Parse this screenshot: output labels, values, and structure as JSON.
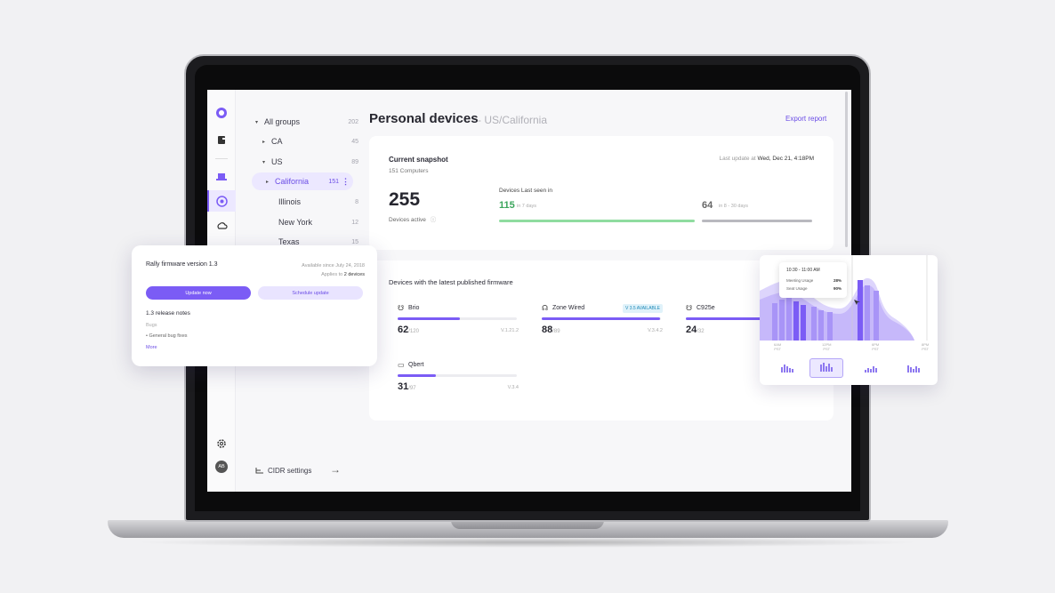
{
  "sidebar_rail": {
    "icons": [
      "logo-icon",
      "document-icon",
      "laptop-icon",
      "dashboard-icon",
      "cloud-icon",
      "settings-icon"
    ],
    "avatar": "AB"
  },
  "tree": {
    "items": [
      {
        "label": "All groups",
        "count": "202",
        "caret": "▾"
      },
      {
        "label": "CA",
        "count": "45",
        "caret": "▸"
      },
      {
        "label": "US",
        "count": "89",
        "caret": "▾"
      },
      {
        "label": "California",
        "count": "151",
        "caret": "▸"
      },
      {
        "label": "Illinois",
        "count": "8",
        "caret": ""
      },
      {
        "label": "New York",
        "count": "12",
        "caret": ""
      },
      {
        "label": "Texas",
        "count": "15",
        "caret": ""
      }
    ],
    "cidr_label": "CIDR settings"
  },
  "header": {
    "title": "Personal devices",
    "subtitle": "- US/California",
    "export_label": "Export report"
  },
  "snapshot": {
    "title": "Current snapshot",
    "subtitle": "151 Computers",
    "last_update_label": "Last update at",
    "last_update_value": "Wed, Dec 21, 4:18PM",
    "active_count": "255",
    "active_label": "Devices active",
    "last_seen_label": "Devices Last seen in",
    "recent_count": "115",
    "recent_range": "in 7 days",
    "older_count": "64",
    "older_range": "in 8 - 30 days"
  },
  "firmware": {
    "title": "Devices with the latest published firmware",
    "devices": [
      {
        "name": "Brio",
        "count": "62",
        "total": "/120",
        "version": "V.1.21.2",
        "progress": 0.52,
        "badge": ""
      },
      {
        "name": "Zone Wired",
        "count": "88",
        "total": "/89",
        "version": "V.3.4.2",
        "progress": 0.99,
        "badge": "V 3.5 AVAILABLE"
      },
      {
        "name": "C925e",
        "count": "24",
        "total": "/32",
        "version": "",
        "progress": 0.75,
        "badge": ""
      },
      {
        "name": "Qbert",
        "count": "31",
        "total": "/97",
        "version": "V.3.4",
        "progress": 0.32,
        "badge": ""
      }
    ]
  },
  "popup": {
    "title": "Rally firmware version 1.3",
    "available": "Available since July 24, 2018",
    "applies_prefix": "Applies to",
    "applies_value": "2 devices",
    "update_label": "Update now",
    "schedule_label": "Schedule update",
    "notes_title": "1.3 release notes",
    "bugs_label": "Bugs",
    "bug_item": "• General bug fixes",
    "more_label": "More"
  },
  "usage_chart": {
    "tooltip_time": "10:30 - 11:00 AM",
    "rows": [
      {
        "label": "Meeting Usage",
        "value": "28%"
      },
      {
        "label": "Seat Usage",
        "value": "90%"
      }
    ],
    "x_labels": [
      "6AM\nPST",
      "12PM\nPST",
      "6PM\nPST",
      "8PM\nPST"
    ],
    "colors": {
      "dark": "#7b5cf5",
      "mid": "#a894f7",
      "light": "#ddd5fc"
    }
  }
}
